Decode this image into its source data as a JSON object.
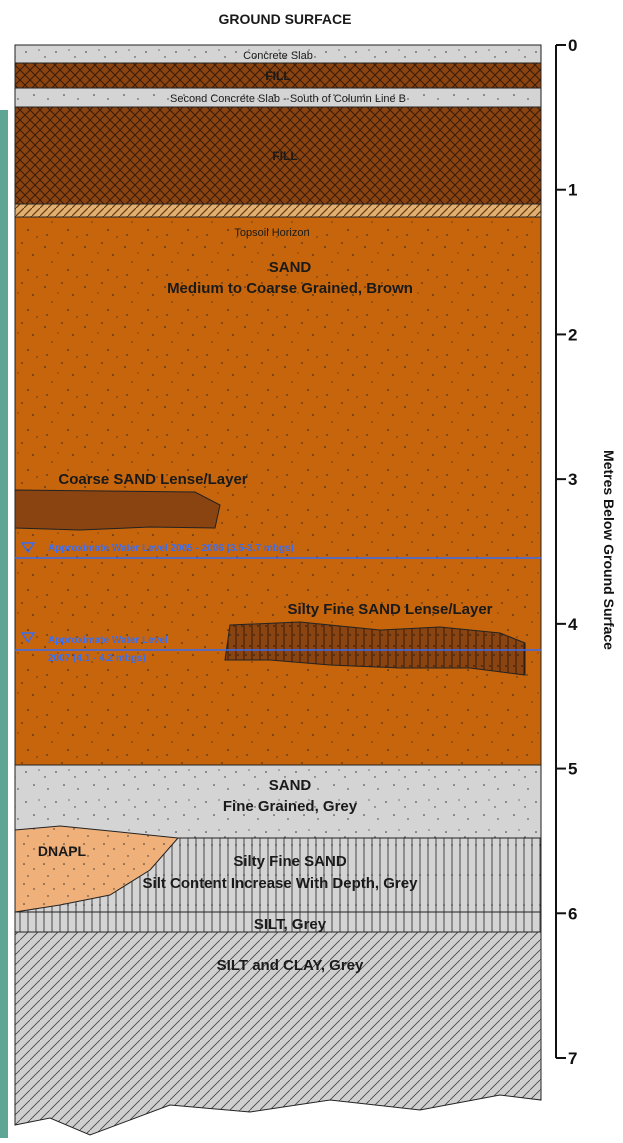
{
  "header": {
    "title": "GROUND SURFACE"
  },
  "layers": [
    {
      "label": "Concrete Slab"
    },
    {
      "label": "FILL"
    },
    {
      "label": "Second Concrete Slab - South of Column Line B"
    },
    {
      "label": "FILL"
    },
    {
      "label": "Topsoil Horizon"
    },
    {
      "label": "SAND",
      "description": "Medium to Coarse Grained, Brown"
    },
    {
      "label": "SAND",
      "description": "Fine Grained, Grey"
    },
    {
      "label": "Silty Fine SAND",
      "description": "Silt Content Increase With Depth, Grey"
    },
    {
      "label": "SILT, Grey"
    },
    {
      "label": "SILT and CLAY, Grey"
    }
  ],
  "lenses": [
    {
      "label": "Coarse SAND Lense/Layer"
    },
    {
      "label": "Silty Fine SAND Lense/Layer"
    },
    {
      "label": "DNAPL"
    }
  ],
  "water_levels": [
    {
      "label": "Approximate Water Level 2005 - 2006 (3.5-3.7 mbgs)"
    },
    {
      "label": "Approximate Water Level",
      "detail": "2007 (4.1 - 4.2 mbgs)"
    }
  ],
  "depth_axis": {
    "title": "Metres Below Ground Surface",
    "ticks": [
      0,
      1,
      2,
      3,
      4,
      5,
      6,
      7
    ]
  }
}
